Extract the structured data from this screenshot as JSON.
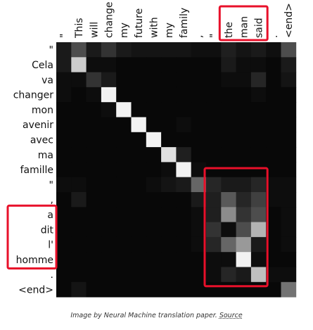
{
  "chart_data": {
    "type": "heatmap",
    "x_tokens": [
      "\"",
      "This",
      "will",
      "change",
      "my",
      "future",
      "with",
      "my",
      "family",
      ",",
      "\"",
      "the",
      "man",
      "said",
      ".",
      "<end>"
    ],
    "y_tokens": [
      "\"",
      "Cela",
      "va",
      "changer",
      "mon",
      "avenir",
      "avec",
      "ma",
      "famille",
      "\"",
      ",",
      "a",
      "dit",
      "l'",
      "homme",
      ".",
      "<end>"
    ],
    "colormap": "grayscale",
    "values": [
      [
        0.1,
        0.3,
        0.1,
        0.2,
        0.1,
        0.08,
        0.08,
        0.08,
        0.08,
        0.06,
        0.06,
        0.12,
        0.08,
        0.1,
        0.06,
        0.3
      ],
      [
        0.1,
        0.8,
        0.05,
        0.05,
        0.03,
        0.03,
        0.03,
        0.03,
        0.03,
        0.03,
        0.03,
        0.1,
        0.05,
        0.05,
        0.03,
        0.1
      ],
      [
        0.05,
        0.05,
        0.2,
        0.1,
        0.03,
        0.03,
        0.03,
        0.03,
        0.03,
        0.03,
        0.03,
        0.05,
        0.05,
        0.15,
        0.03,
        0.08
      ],
      [
        0.05,
        0.03,
        0.05,
        0.95,
        0.03,
        0.03,
        0.03,
        0.03,
        0.03,
        0.03,
        0.03,
        0.03,
        0.03,
        0.05,
        0.03,
        0.03
      ],
      [
        0.03,
        0.03,
        0.03,
        0.05,
        0.95,
        0.03,
        0.03,
        0.03,
        0.03,
        0.03,
        0.03,
        0.03,
        0.03,
        0.03,
        0.03,
        0.03
      ],
      [
        0.03,
        0.03,
        0.03,
        0.03,
        0.03,
        0.95,
        0.03,
        0.03,
        0.05,
        0.03,
        0.03,
        0.03,
        0.03,
        0.03,
        0.03,
        0.03
      ],
      [
        0.03,
        0.03,
        0.03,
        0.03,
        0.03,
        0.03,
        0.95,
        0.03,
        0.03,
        0.03,
        0.03,
        0.03,
        0.03,
        0.03,
        0.03,
        0.03
      ],
      [
        0.03,
        0.03,
        0.03,
        0.03,
        0.03,
        0.03,
        0.03,
        0.88,
        0.12,
        0.03,
        0.03,
        0.03,
        0.03,
        0.03,
        0.03,
        0.03
      ],
      [
        0.03,
        0.03,
        0.03,
        0.03,
        0.03,
        0.03,
        0.03,
        0.05,
        0.95,
        0.05,
        0.03,
        0.03,
        0.03,
        0.03,
        0.03,
        0.03
      ],
      [
        0.05,
        0.05,
        0.03,
        0.03,
        0.03,
        0.03,
        0.05,
        0.08,
        0.1,
        0.4,
        0.15,
        0.1,
        0.1,
        0.15,
        0.05,
        0.05
      ],
      [
        0.03,
        0.1,
        0.03,
        0.03,
        0.03,
        0.03,
        0.03,
        0.03,
        0.03,
        0.1,
        0.12,
        0.35,
        0.15,
        0.25,
        0.05,
        0.05
      ],
      [
        0.03,
        0.03,
        0.03,
        0.03,
        0.03,
        0.03,
        0.03,
        0.03,
        0.03,
        0.05,
        0.12,
        0.55,
        0.2,
        0.3,
        0.03,
        0.05
      ],
      [
        0.03,
        0.03,
        0.03,
        0.03,
        0.03,
        0.03,
        0.03,
        0.03,
        0.03,
        0.05,
        0.2,
        0.05,
        0.3,
        0.7,
        0.03,
        0.05
      ],
      [
        0.03,
        0.03,
        0.03,
        0.03,
        0.03,
        0.03,
        0.03,
        0.03,
        0.03,
        0.05,
        0.15,
        0.4,
        0.6,
        0.1,
        0.03,
        0.05
      ],
      [
        0.03,
        0.03,
        0.03,
        0.03,
        0.03,
        0.03,
        0.03,
        0.03,
        0.03,
        0.03,
        0.05,
        0.05,
        0.95,
        0.05,
        0.03,
        0.03
      ],
      [
        0.03,
        0.03,
        0.03,
        0.03,
        0.03,
        0.03,
        0.03,
        0.03,
        0.03,
        0.03,
        0.05,
        0.15,
        0.1,
        0.75,
        0.05,
        0.05
      ],
      [
        0.03,
        0.08,
        0.03,
        0.03,
        0.03,
        0.03,
        0.03,
        0.03,
        0.03,
        0.03,
        0.03,
        0.03,
        0.03,
        0.03,
        0.03,
        0.45
      ]
    ],
    "highlights": {
      "color": "#e8102a",
      "x_tokens_box": [
        "the",
        "man",
        "said"
      ],
      "y_tokens_box": [
        "a",
        "dit",
        "l'",
        "homme"
      ],
      "cell_region": {
        "x_from": "\"",
        "x_to": "said",
        "y_from": "famille",
        "y_to": "."
      }
    }
  },
  "caption": {
    "text": "Image by Neural Machine translation paper.",
    "source_link": "Source"
  }
}
